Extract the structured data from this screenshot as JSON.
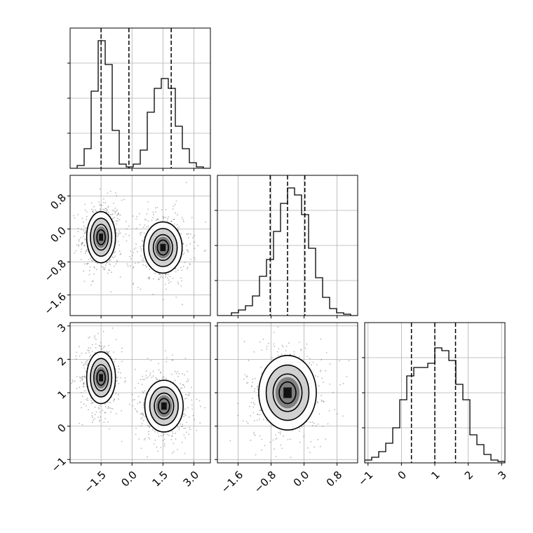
{
  "chart_data": {
    "type": "corner",
    "panels": [
      {
        "id": "hist-x",
        "type": "histogram",
        "xlim": [
          -3.0,
          3.8
        ],
        "ylim": [
          0,
          1.0
        ],
        "xticks": [
          -1.5,
          0.0,
          1.5,
          3.0
        ],
        "xtick_labels": [],
        "ytick_labels": [],
        "grid": true,
        "bin_edges": [
          -3.0,
          -2.66,
          -2.32,
          -1.98,
          -1.64,
          -1.3,
          -0.96,
          -0.62,
          -0.28,
          0.06,
          0.4,
          0.74,
          1.08,
          1.42,
          1.76,
          2.1,
          2.44,
          2.78,
          3.12,
          3.46,
          3.8
        ],
        "counts": [
          0.0,
          0.02,
          0.14,
          0.55,
          0.91,
          0.74,
          0.27,
          0.03,
          0.01,
          0.03,
          0.13,
          0.4,
          0.57,
          0.64,
          0.57,
          0.3,
          0.14,
          0.04,
          0.01,
          0.0
        ],
        "quantiles": [
          -1.5,
          -0.15,
          1.9
        ]
      },
      {
        "id": "hist-y",
        "type": "histogram",
        "xlim": [
          -2.1,
          1.3
        ],
        "ylim": [
          0,
          1.0
        ],
        "xticks": [
          -1.6,
          -0.8,
          0.0,
          0.8
        ],
        "xtick_labels": [],
        "ytick_labels": [],
        "grid": true,
        "bin_edges": [
          -2.1,
          -1.93,
          -1.76,
          -1.59,
          -1.42,
          -1.25,
          -1.08,
          -0.91,
          -0.74,
          -0.57,
          -0.4,
          -0.23,
          -0.06,
          0.11,
          0.28,
          0.45,
          0.62,
          0.79,
          0.96,
          1.13,
          1.3
        ],
        "counts": [
          0.0,
          0.0,
          0.02,
          0.04,
          0.07,
          0.14,
          0.28,
          0.4,
          0.6,
          0.8,
          0.91,
          0.86,
          0.72,
          0.48,
          0.27,
          0.13,
          0.05,
          0.02,
          0.01,
          0.0
        ],
        "quantiles": [
          -0.82,
          -0.4,
          0.02
        ]
      },
      {
        "id": "hist-z",
        "type": "histogram",
        "xlim": [
          -1.1,
          3.1
        ],
        "ylim": [
          0,
          1.0
        ],
        "xticks": [
          -1,
          0,
          1,
          2,
          3
        ],
        "xtick_labels": [
          "-1",
          "0",
          "1",
          "2",
          "3"
        ],
        "ytick_labels": [],
        "grid": true,
        "bin_edges": [
          -1.1,
          -0.89,
          -0.68,
          -0.47,
          -0.26,
          -0.05,
          0.16,
          0.37,
          0.58,
          0.79,
          1.0,
          1.21,
          1.42,
          1.63,
          1.84,
          2.05,
          2.26,
          2.47,
          2.68,
          2.89,
          3.1
        ],
        "counts": [
          0.02,
          0.04,
          0.08,
          0.14,
          0.25,
          0.45,
          0.62,
          0.68,
          0.68,
          0.71,
          0.82,
          0.8,
          0.73,
          0.56,
          0.45,
          0.2,
          0.13,
          0.06,
          0.02,
          0.01
        ],
        "quantiles": [
          0.3,
          1.0,
          1.62
        ]
      },
      {
        "id": "scatter-y-vs-x",
        "type": "density_contour",
        "xlim": [
          -3.0,
          3.8
        ],
        "ylim": [
          -2.1,
          1.3
        ],
        "xticks": [
          -1.5,
          0.0,
          1.5,
          3.0
        ],
        "yticks": [
          -1.6,
          -0.8,
          0.0,
          0.8
        ],
        "ytick_labels": [
          "-1.6",
          "-0.8",
          "0.0",
          "0.8"
        ],
        "grid": true,
        "clusters": [
          {
            "center": [
              -1.5,
              -0.2
            ],
            "sigma": [
              0.45,
              0.4
            ]
          },
          {
            "center": [
              1.5,
              -0.45
            ],
            "sigma": [
              0.6,
              0.4
            ]
          }
        ]
      },
      {
        "id": "scatter-z-vs-x",
        "type": "density_contour",
        "xlim": [
          -3.0,
          3.8
        ],
        "ylim": [
          -1.1,
          3.1
        ],
        "xticks": [
          -1.5,
          0.0,
          1.5,
          3.0
        ],
        "xtick_labels": [
          "-1.5",
          "0.0",
          "1.5",
          "3.0"
        ],
        "yticks": [
          -1,
          0,
          1,
          2,
          3
        ],
        "ytick_labels": [
          "-1",
          "0",
          "1",
          "2",
          "3"
        ],
        "grid": true,
        "clusters": [
          {
            "center": [
              -1.5,
              1.45
            ],
            "sigma": [
              0.45,
              0.5
            ]
          },
          {
            "center": [
              1.55,
              0.6
            ],
            "sigma": [
              0.6,
              0.5
            ]
          }
        ]
      },
      {
        "id": "scatter-z-vs-y",
        "type": "density_contour",
        "xlim": [
          -2.1,
          1.3
        ],
        "ylim": [
          -1.1,
          3.1
        ],
        "xticks": [
          -1.6,
          -0.8,
          0.0,
          0.8
        ],
        "xtick_labels": [
          "-1.6",
          "-0.8",
          "0.0",
          "0.8"
        ],
        "yticks": [
          -1,
          0,
          1,
          2,
          3
        ],
        "grid": true,
        "clusters": [
          {
            "center": [
              -0.4,
              1.0
            ],
            "sigma": [
              0.45,
              0.72
            ]
          }
        ]
      }
    ],
    "colors": {
      "line": "#000000",
      "grid": "#b0b0b0",
      "points": "#000000"
    }
  }
}
